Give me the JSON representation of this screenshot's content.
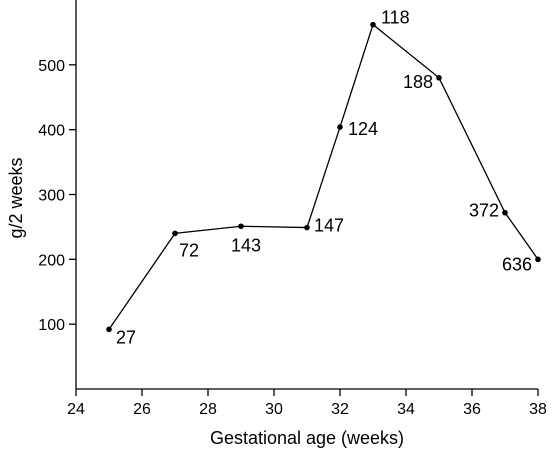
{
  "chart_data": {
    "type": "line",
    "xlabel": "Gestational age (weeks)",
    "ylabel": "g/2 weeks",
    "xlim": [
      24,
      38
    ],
    "ylim": [
      0,
      600
    ],
    "x_ticks": [
      24,
      26,
      28,
      30,
      32,
      34,
      36,
      38
    ],
    "y_ticks": [
      100,
      200,
      300,
      400,
      500
    ],
    "grid": false,
    "legend": "none",
    "series": [
      {
        "x": [
          25,
          27,
          29,
          31,
          32,
          33,
          35,
          37,
          38
        ],
        "values": [
          92,
          240,
          251,
          249,
          404,
          562,
          480,
          272,
          200
        ],
        "point_labels": [
          "27",
          "72",
          "143",
          "147",
          "124",
          "118",
          "188",
          "372",
          "636"
        ]
      }
    ],
    "color": "#000000"
  }
}
